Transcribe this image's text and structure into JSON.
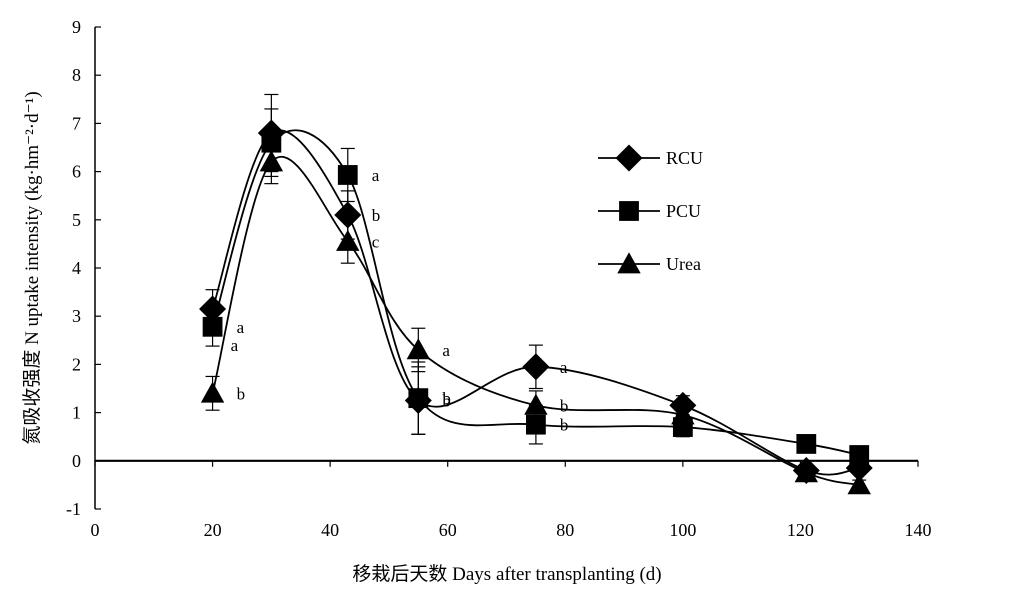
{
  "chart_data": {
    "type": "line",
    "xlabel": "移栽后天数 Days after transplanting (d)",
    "ylabel": "氮吸收强度 N uptake intensity (kg·hm⁻²·d⁻¹)",
    "xlim": [
      0,
      140
    ],
    "ylim": [
      -1,
      9
    ],
    "xticks": [
      0,
      20,
      40,
      60,
      80,
      100,
      120,
      140
    ],
    "yticks": [
      -1,
      0,
      1,
      2,
      3,
      4,
      5,
      6,
      7,
      8,
      9
    ],
    "grid": false,
    "legend_position": "right",
    "series": [
      {
        "name": "RCU",
        "marker": "diamond",
        "x": [
          20,
          30,
          43,
          55,
          75,
          100,
          121,
          130
        ],
        "y": [
          3.15,
          6.8,
          5.1,
          1.25,
          1.95,
          1.15,
          -0.2,
          -0.15
        ],
        "err": [
          0.4,
          0.8,
          0.5,
          0.7,
          0.45,
          0.2,
          0.1,
          0.1
        ],
        "labels": [
          "",
          "",
          "b",
          "b",
          "a",
          "",
          "",
          ""
        ]
      },
      {
        "name": "PCU",
        "marker": "square",
        "x": [
          20,
          30,
          43,
          55,
          75,
          100,
          121,
          130
        ],
        "y": [
          2.78,
          6.6,
          5.93,
          1.3,
          0.75,
          0.7,
          0.35,
          0.12
        ],
        "err": [
          0.4,
          0.7,
          0.55,
          0.75,
          0.4,
          0.2,
          0.08,
          0.08
        ],
        "labels": [
          "a",
          "",
          "a",
          "b",
          "b",
          "",
          "",
          ""
        ]
      },
      {
        "name": "Urea",
        "marker": "triangle",
        "x": [
          20,
          30,
          43,
          55,
          75,
          100,
          121,
          130
        ],
        "y": [
          1.4,
          6.2,
          4.55,
          2.3,
          1.15,
          0.95,
          -0.25,
          -0.5
        ],
        "err": [
          0.35,
          0.45,
          0.45,
          0.45,
          0.3,
          0.2,
          0.1,
          0.1
        ],
        "labels": [
          "b",
          "",
          "c",
          "a",
          "b",
          "",
          "",
          ""
        ]
      }
    ],
    "extra_labels": [
      {
        "x": 20,
        "y": 2.4,
        "text": "a"
      }
    ]
  }
}
